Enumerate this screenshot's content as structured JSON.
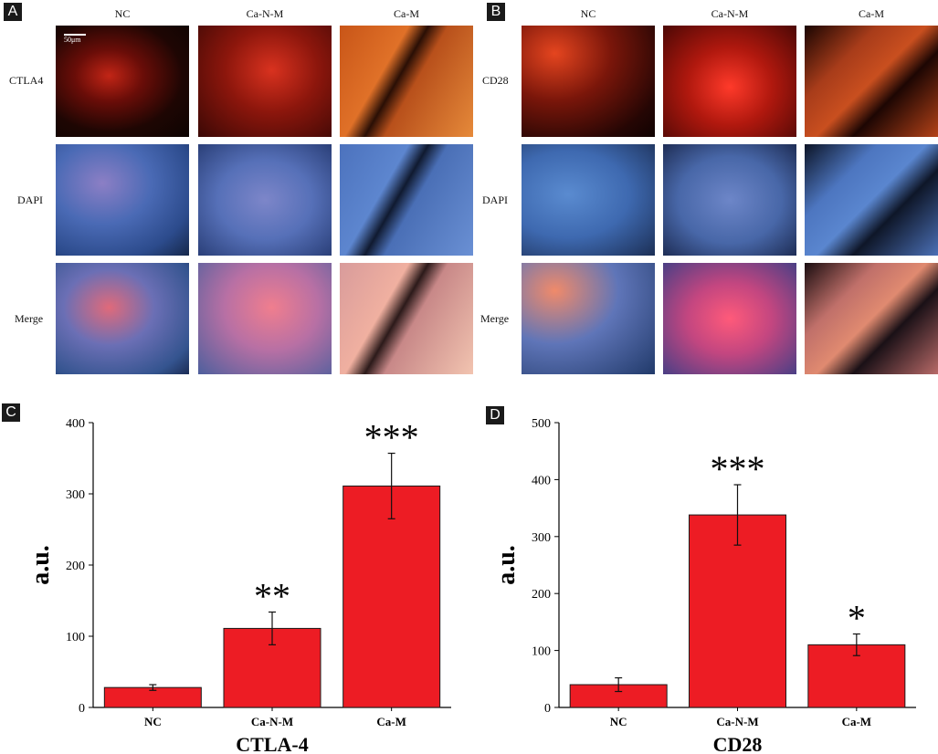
{
  "panels": {
    "a": {
      "letter": "A",
      "columns": [
        "NC",
        "Ca-N-M",
        "Ca-M"
      ],
      "rows": [
        "CTLA4",
        "DAPI",
        "Merge"
      ],
      "scale_bar": "50μm"
    },
    "b": {
      "letter": "B",
      "columns": [
        "NC",
        "Ca-N-M",
        "Ca-M"
      ],
      "rows": [
        "CD28",
        "DAPI",
        "Merge"
      ]
    },
    "c": {
      "letter": "C"
    },
    "d": {
      "letter": "D"
    }
  },
  "colors": {
    "bar": "#ed1c24",
    "axis": "#000000"
  },
  "chart_data": [
    {
      "type": "bar",
      "panel": "C",
      "title": "",
      "xlabel": "CTLA-4",
      "ylabel": "a.u.",
      "categories": [
        "NC",
        "Ca-N-M",
        "Ca-M"
      ],
      "values": [
        28,
        111,
        311
      ],
      "errors": [
        4,
        23,
        46
      ],
      "significance": [
        "",
        "**",
        "***"
      ],
      "ylim": [
        0,
        400
      ],
      "yticks": [
        "0",
        "100",
        "200",
        "300",
        "400"
      ],
      "grid": false,
      "legend": "none"
    },
    {
      "type": "bar",
      "panel": "D",
      "title": "",
      "xlabel": "CD28",
      "ylabel": "a.u.",
      "categories": [
        "NC",
        "Ca-N-M",
        "Ca-M"
      ],
      "values": [
        40,
        338,
        110
      ],
      "errors": [
        12,
        53,
        19
      ],
      "significance": [
        "",
        "***",
        "*"
      ],
      "ylim": [
        0,
        500
      ],
      "yticks": [
        "0",
        "100",
        "200",
        "300",
        "400",
        "500"
      ],
      "grid": false,
      "legend": "none"
    }
  ]
}
